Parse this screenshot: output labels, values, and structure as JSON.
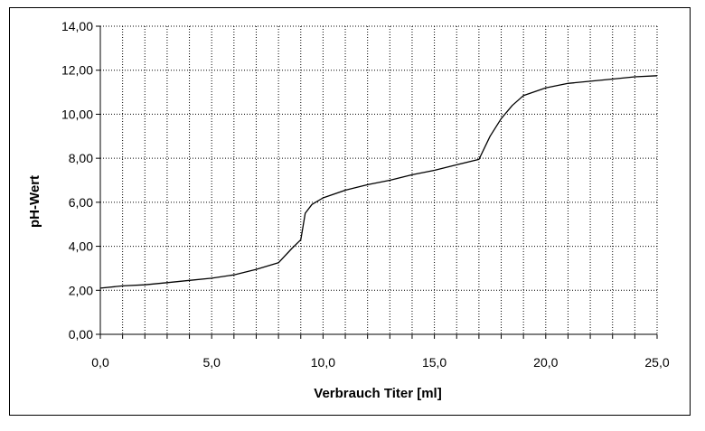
{
  "chart_data": {
    "type": "line",
    "xlabel": "Verbrauch Titer [ml]",
    "ylabel": "pH-Wert",
    "xlim": [
      0,
      25
    ],
    "ylim": [
      0,
      14
    ],
    "x_ticks": [
      0,
      1,
      2,
      3,
      4,
      5,
      6,
      7,
      8,
      9,
      10,
      11,
      12,
      13,
      14,
      15,
      16,
      17,
      18,
      19,
      20,
      21,
      22,
      23,
      24,
      25
    ],
    "x_tick_labels": [
      "0,0",
      "5,0",
      "10,0",
      "15,0",
      "20,0",
      "25,0"
    ],
    "x_tick_label_values": [
      0,
      5,
      10,
      15,
      20,
      25
    ],
    "y_ticks": [
      0,
      2,
      4,
      6,
      8,
      10,
      12,
      14
    ],
    "y_tick_labels": [
      "0,00",
      "2,00",
      "4,00",
      "6,00",
      "8,00",
      "10,00",
      "12,00",
      "14,00"
    ],
    "grid": true,
    "legend": false,
    "series": [
      {
        "color": "#000000",
        "points": [
          [
            0.0,
            2.1
          ],
          [
            1.0,
            2.2
          ],
          [
            2.0,
            2.25
          ],
          [
            3.0,
            2.35
          ],
          [
            4.0,
            2.45
          ],
          [
            5.0,
            2.55
          ],
          [
            6.0,
            2.7
          ],
          [
            7.0,
            2.95
          ],
          [
            8.0,
            3.25
          ],
          [
            8.6,
            3.9
          ],
          [
            9.0,
            4.3
          ],
          [
            9.2,
            5.5
          ],
          [
            9.5,
            5.9
          ],
          [
            10.0,
            6.2
          ],
          [
            11.0,
            6.55
          ],
          [
            12.0,
            6.8
          ],
          [
            13.0,
            7.0
          ],
          [
            14.0,
            7.25
          ],
          [
            15.0,
            7.45
          ],
          [
            16.0,
            7.7
          ],
          [
            17.0,
            7.95
          ],
          [
            17.5,
            9.0
          ],
          [
            18.0,
            9.8
          ],
          [
            18.5,
            10.4
          ],
          [
            19.0,
            10.85
          ],
          [
            20.0,
            11.2
          ],
          [
            21.0,
            11.4
          ],
          [
            22.0,
            11.5
          ],
          [
            23.0,
            11.6
          ],
          [
            24.0,
            11.7
          ],
          [
            25.0,
            11.75
          ]
        ]
      }
    ]
  }
}
